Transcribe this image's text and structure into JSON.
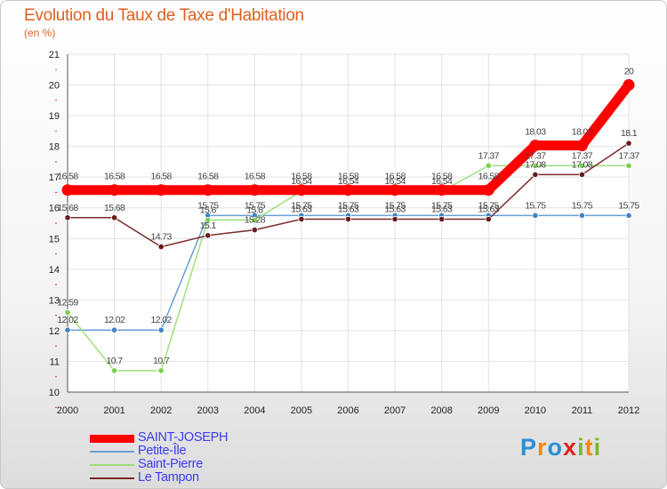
{
  "title": "Evolution du Taux de Taxe d'Habitation",
  "subtitle": "(en %)",
  "brand": {
    "text": "Proxiti",
    "letters": [
      {
        "ch": "P",
        "color": "#2a8fd6"
      },
      {
        "ch": "r",
        "color": "#f08a00"
      },
      {
        "ch": "o",
        "color": "#2a8fd6"
      },
      {
        "ch": "x",
        "color": "#e02020"
      },
      {
        "ch": "i",
        "color": "#79b928"
      },
      {
        "ch": "t",
        "color": "#f08a00"
      },
      {
        "ch": "i",
        "color": "#79b928"
      }
    ]
  },
  "chart_data": {
    "type": "line",
    "title": "Evolution du Taux de Taxe d'Habitation",
    "subtitle": "(en %)",
    "xlabel": "",
    "ylabel": "",
    "categories": [
      "2000",
      "2001",
      "2002",
      "2003",
      "2004",
      "2005",
      "2006",
      "2007",
      "2008",
      "2009",
      "2010",
      "2011",
      "2012"
    ],
    "ylim": [
      10,
      21
    ],
    "yticks": [
      10,
      11,
      12,
      13,
      14,
      15,
      16,
      17,
      18,
      19,
      20,
      21
    ],
    "grid": true,
    "legend_position": "bottom-left",
    "series": [
      {
        "name": "SAINT-JOSEPH",
        "color": "#ff0000",
        "values": [
          16.58,
          16.58,
          16.58,
          16.58,
          16.58,
          16.58,
          16.58,
          16.58,
          16.58,
          16.58,
          18.03,
          18.03,
          20
        ],
        "labels": [
          "16.58",
          "16.58",
          "16.58",
          "16.58",
          "16.58",
          "16.58",
          "16.58",
          "16.58",
          "16.58",
          "16.58",
          "18.03",
          "18.03",
          "20"
        ]
      },
      {
        "name": "Petite-Île",
        "color": "#6a9fd4",
        "values": [
          12.02,
          12.02,
          12.02,
          15.75,
          15.75,
          15.75,
          15.75,
          15.75,
          15.75,
          15.75,
          15.75,
          15.75,
          15.75
        ],
        "labels": [
          "12.02",
          "12.02",
          "12.02",
          "15.75",
          "15.75",
          "15.75",
          "15.75",
          "15.75",
          "15.75",
          "15.75",
          "15.75",
          "15.75",
          "15.75"
        ]
      },
      {
        "name": "Saint-Pierre",
        "color": "#9ee07a",
        "values": [
          12.59,
          10.7,
          10.7,
          15.6,
          15.6,
          16.54,
          16.54,
          16.54,
          16.54,
          17.37,
          17.37,
          17.37,
          17.37
        ],
        "labels": [
          "12.59",
          "10.7",
          "10.7",
          "15.6",
          "15.6",
          "16.54",
          "16.54",
          "16.54",
          "16.54",
          "17.37",
          "17.37",
          "17.37",
          "17.37"
        ]
      },
      {
        "name": "Le Tampon",
        "color": "#7a2a2a",
        "values": [
          15.68,
          15.68,
          14.73,
          15.1,
          15.28,
          15.63,
          15.63,
          15.63,
          15.63,
          15.63,
          17.08,
          17.08,
          18.1
        ],
        "labels": [
          "15.68",
          "15.68",
          "14.73",
          "15.1",
          "15.28",
          "15.63",
          "15.63",
          "15.63",
          "15.63",
          "15.63",
          "17.08",
          "17.08",
          "18.1"
        ]
      }
    ]
  }
}
